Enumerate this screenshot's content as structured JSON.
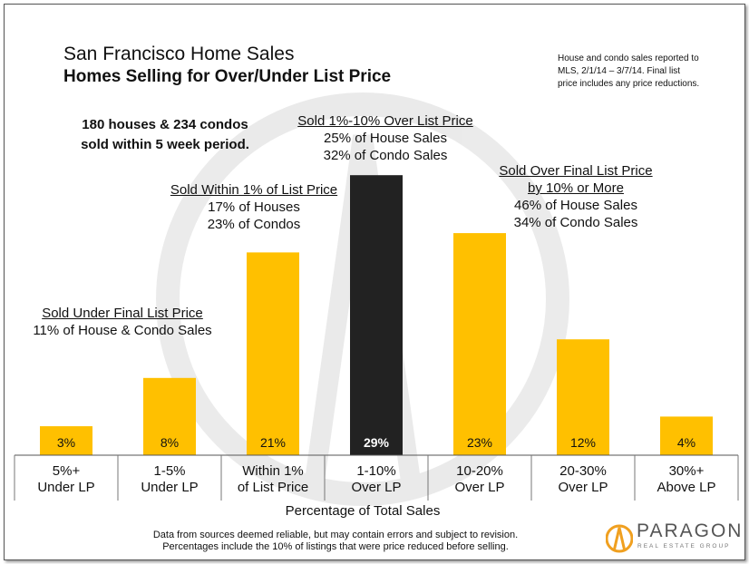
{
  "header": {
    "title_line1": "San Francisco Home Sales",
    "title_line2": "Homes Selling for Over/Under List Price",
    "note_line1": "House and condo sales reported to",
    "note_line2": "MLS, 2/1/14 – 3/7/14. Final list",
    "note_line3": "price includes any price reductions."
  },
  "stats": {
    "line1": "180 houses & 234 condos",
    "line2": "sold within 5 week period."
  },
  "annotations": {
    "under": {
      "heading": "Sold Under Final List Price",
      "line1": "11% of House & Condo Sales"
    },
    "within": {
      "heading": "Sold Within 1% of List Price",
      "line1": "17% of Houses",
      "line2": "23% of Condos"
    },
    "one_to_ten": {
      "heading": "Sold 1%-10% Over List Price",
      "line1": "25% of House Sales",
      "line2": "32% of Condo Sales"
    },
    "over_ten": {
      "heading1": "Sold Over Final List Price",
      "heading2": "by 10% or More",
      "line1": "46% of House Sales",
      "line2": "34% of Condo Sales"
    }
  },
  "chart_data": {
    "type": "bar",
    "categories": [
      [
        "5%+",
        "Under LP"
      ],
      [
        "1-5%",
        "Under LP"
      ],
      [
        "Within 1%",
        "of List Price"
      ],
      [
        "1-10%",
        "Over LP"
      ],
      [
        "10-20%",
        "Over LP"
      ],
      [
        "20-30%",
        "Over LP"
      ],
      [
        "30%+",
        "Above LP"
      ]
    ],
    "values": [
      3,
      8,
      21,
      29,
      23,
      12,
      4
    ],
    "value_labels": [
      "3%",
      "8%",
      "21%",
      "29%",
      "23%",
      "12%",
      "4%"
    ],
    "xlabel": "Percentage of Total Sales",
    "ylim": [
      0,
      30
    ],
    "colors": [
      "#FFC000",
      "#FFC000",
      "#FFC000",
      "#222222",
      "#FFC000",
      "#FFC000",
      "#FFC000"
    ],
    "label_colors": [
      "#111111",
      "#111111",
      "#111111",
      "#ffffff",
      "#111111",
      "#111111",
      "#111111"
    ]
  },
  "footer": {
    "line1": "Data from sources deemed reliable, but may contain errors and subject to revision.",
    "line2": "Percentages include the 10% of listings that were price reduced before selling."
  },
  "logo": {
    "word": "PARAGON",
    "sub": "REAL ESTATE GROUP",
    "accent": "#F0A020"
  }
}
